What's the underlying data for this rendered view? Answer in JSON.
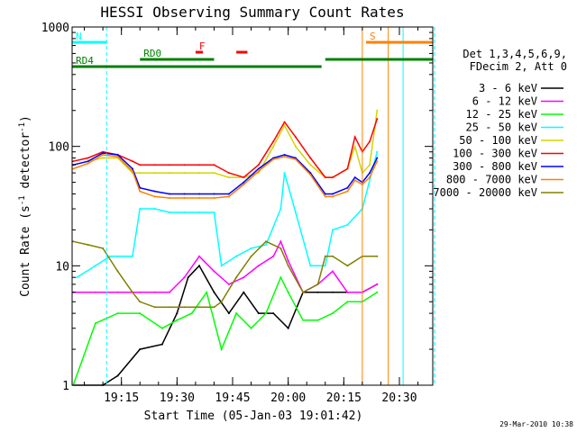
{
  "chart_data": {
    "type": "line",
    "title": "HESSI Observing Summary Count Rates",
    "xlabel": "Start Time (05-Jan-03 19:01:42)",
    "ylabel": "Count Rate (s",
    "ylabel_sup": "-1",
    "ylabel_tail": " detector",
    "ylabel_sup2": "-1",
    "ylabel_end": ")",
    "timestamp": "29-Mar-2010 10:38",
    "yscale": "log",
    "ylim": [
      1,
      1000
    ],
    "xlim": [
      "19:01:42",
      "20:39:00"
    ],
    "xticks": [
      "19:15",
      "19:30",
      "19:45",
      "20:00",
      "20:15",
      "20:30"
    ],
    "yticks": [
      "1",
      "10",
      "100",
      "1000"
    ],
    "legend_header": [
      "Det 1,3,4,5,6,9,",
      "FDecim 2, Att 0"
    ],
    "series": [
      {
        "name": "3 - 6 keV",
        "color": "#000000",
        "x": [
          "19:02",
          "19:10",
          "19:14",
          "19:20",
          "19:26",
          "19:30",
          "19:33",
          "19:36",
          "19:40",
          "19:44",
          "19:48",
          "19:52",
          "19:56",
          "20:00",
          "20:04",
          "20:08",
          "20:12",
          "20:16",
          "20:20",
          "20:24"
        ],
        "y": [
          1,
          1,
          1.2,
          2,
          2.2,
          4,
          8,
          10,
          6,
          4,
          6,
          4,
          4,
          3,
          6,
          6,
          6,
          6,
          6,
          7
        ]
      },
      {
        "name": "6 - 12 keV",
        "color": "#ff00ff",
        "x": [
          "19:02",
          "19:08",
          "19:14",
          "19:20",
          "19:24",
          "19:28",
          "19:32",
          "19:36",
          "19:40",
          "19:44",
          "19:48",
          "19:52",
          "19:56",
          "19:58",
          "20:00",
          "20:04",
          "20:08",
          "20:12",
          "20:16",
          "20:20",
          "20:24"
        ],
        "y": [
          6,
          6,
          6,
          6,
          6,
          6,
          8,
          12,
          9,
          7,
          8,
          10,
          12,
          16,
          11,
          6,
          7,
          9,
          6,
          6,
          7
        ]
      },
      {
        "name": "12 - 25 keV",
        "color": "#00ff00",
        "x": [
          "19:02",
          "19:08",
          "19:14",
          "19:20",
          "19:26",
          "19:30",
          "19:34",
          "19:38",
          "19:42",
          "19:46",
          "19:50",
          "19:54",
          "19:58",
          "20:00",
          "20:04",
          "20:08",
          "20:12",
          "20:16",
          "20:20",
          "20:24"
        ],
        "y": [
          1,
          3.3,
          4,
          4,
          3,
          3.5,
          4,
          6,
          2,
          4,
          3,
          4,
          8,
          6,
          3.5,
          3.5,
          4,
          5,
          5,
          6
        ]
      },
      {
        "name": "25 - 50 keV",
        "color": "#00ffff",
        "x": [
          "19:03",
          "19:08",
          "19:12",
          "19:14",
          "19:18",
          "19:20",
          "19:24",
          "19:28",
          "19:32",
          "19:36",
          "19:40",
          "19:42",
          "19:46",
          "19:50",
          "19:54",
          "19:58",
          "19:59",
          "20:02",
          "20:06",
          "20:10",
          "20:12",
          "20:16",
          "20:20",
          "20:24"
        ],
        "y": [
          8,
          10,
          12,
          12,
          12,
          30,
          30,
          28,
          28,
          28,
          28,
          10,
          12,
          14,
          15,
          30,
          60,
          28,
          10,
          10,
          20,
          22,
          30,
          90
        ]
      },
      {
        "name": "50 - 100 keV",
        "color": "#d4d400",
        "x": [
          "19:02",
          "19:06",
          "19:10",
          "19:14",
          "19:18",
          "19:20",
          "19:24",
          "19:28",
          "19:32",
          "19:36",
          "19:40",
          "19:44",
          "19:48",
          "19:52",
          "19:56",
          "19:59",
          "20:02",
          "20:06",
          "20:10",
          "20:12",
          "20:16",
          "20:18",
          "20:20",
          "20:22",
          "20:24"
        ],
        "y": [
          70,
          75,
          80,
          80,
          60,
          60,
          60,
          60,
          60,
          60,
          60,
          55,
          55,
          60,
          100,
          150,
          100,
          70,
          55,
          55,
          65,
          100,
          60,
          70,
          200
        ]
      },
      {
        "name": "100 - 300 keV",
        "color": "#ff0000",
        "x": [
          "19:02",
          "19:06",
          "19:10",
          "19:14",
          "19:18",
          "19:20",
          "19:24",
          "19:28",
          "19:32",
          "19:36",
          "19:40",
          "19:44",
          "19:48",
          "19:52",
          "19:56",
          "19:59",
          "20:02",
          "20:06",
          "20:10",
          "20:12",
          "20:16",
          "20:18",
          "20:20",
          "20:22",
          "20:24"
        ],
        "y": [
          75,
          80,
          90,
          85,
          75,
          70,
          70,
          70,
          70,
          70,
          70,
          60,
          55,
          70,
          110,
          160,
          120,
          80,
          55,
          55,
          65,
          120,
          90,
          110,
          170
        ]
      },
      {
        "name": "300 - 800 keV",
        "color": "#0000ff",
        "x": [
          "19:02",
          "19:06",
          "19:10",
          "19:14",
          "19:18",
          "19:20",
          "19:24",
          "19:28",
          "19:32",
          "19:36",
          "19:40",
          "19:44",
          "19:48",
          "19:52",
          "19:56",
          "19:59",
          "20:02",
          "20:06",
          "20:10",
          "20:12",
          "20:16",
          "20:18",
          "20:20",
          "20:22",
          "20:24"
        ],
        "y": [
          70,
          75,
          88,
          85,
          65,
          45,
          42,
          40,
          40,
          40,
          40,
          40,
          50,
          65,
          80,
          85,
          80,
          60,
          40,
          40,
          45,
          55,
          50,
          60,
          80
        ]
      },
      {
        "name": "800 - 7000 keV",
        "color": "#ff8000",
        "x": [
          "19:02",
          "19:06",
          "19:10",
          "19:14",
          "19:18",
          "19:20",
          "19:24",
          "19:28",
          "19:32",
          "19:36",
          "19:40",
          "19:44",
          "19:48",
          "19:52",
          "19:56",
          "19:59",
          "20:02",
          "20:06",
          "20:10",
          "20:12",
          "20:16",
          "20:18",
          "20:20",
          "20:22",
          "20:24"
        ],
        "y": [
          65,
          72,
          85,
          82,
          62,
          42,
          38,
          37,
          37,
          37,
          37,
          38,
          48,
          62,
          78,
          82,
          78,
          58,
          38,
          38,
          42,
          52,
          48,
          55,
          75
        ]
      },
      {
        "name": "7000 - 20000 keV",
        "color": "#808000",
        "x": [
          "19:02",
          "19:06",
          "19:10",
          "19:14",
          "19:18",
          "19:20",
          "19:24",
          "19:28",
          "19:32",
          "19:36",
          "19:40",
          "19:42",
          "19:46",
          "19:50",
          "19:54",
          "19:58",
          "20:00",
          "20:04",
          "20:08",
          "20:10",
          "20:12",
          "20:16",
          "20:20",
          "20:24"
        ],
        "y": [
          16,
          15,
          14,
          9,
          6,
          5,
          4.5,
          4.5,
          4.5,
          4.5,
          4.5,
          5,
          8,
          12,
          16,
          14,
          10,
          6,
          7,
          12,
          12,
          10,
          12,
          12
        ]
      }
    ],
    "flag_bars": [
      {
        "label": "N",
        "color": "#00ffff",
        "start": "19:01:42",
        "end": "19:11:00",
        "row": 1
      },
      {
        "label": "S",
        "color": "#ff8000",
        "start": "20:21:00",
        "end": "20:39:00",
        "row": 1
      },
      {
        "label": "F",
        "color": "#ff0000",
        "start": "19:35:00",
        "end": "19:37:00",
        "row": 2
      },
      {
        "label": "",
        "color": "#ff0000",
        "start": "19:46:00",
        "end": "19:49:00",
        "row": 2
      },
      {
        "label": "RD0",
        "color": "#008000",
        "start": "19:20:00",
        "end": "19:40:00",
        "row": 3
      },
      {
        "label": "RD4",
        "color": "#008000",
        "start": "19:01:42",
        "end": "19:40:00",
        "row": 4
      },
      {
        "label": "",
        "color": "#008000",
        "start": "19:40:00",
        "end": "20:09:00",
        "row": 4
      },
      {
        "label": "",
        "color": "#008000",
        "start": "20:10:00",
        "end": "20:39:00",
        "row": 3
      }
    ],
    "vlines": [
      {
        "t": "19:11:00",
        "color": "#00ffff",
        "dash": true
      },
      {
        "t": "20:20:00",
        "color": "#ff8000",
        "dash": false
      },
      {
        "t": "20:27:00",
        "color": "#ff8000",
        "dash": false
      },
      {
        "t": "20:31:00",
        "color": "#00ffff",
        "dash": false
      },
      {
        "t": "20:39:00",
        "color": "#ff8000",
        "dash": true
      },
      {
        "t": "20:39:30",
        "color": "#00ffff",
        "dash": true
      }
    ]
  }
}
